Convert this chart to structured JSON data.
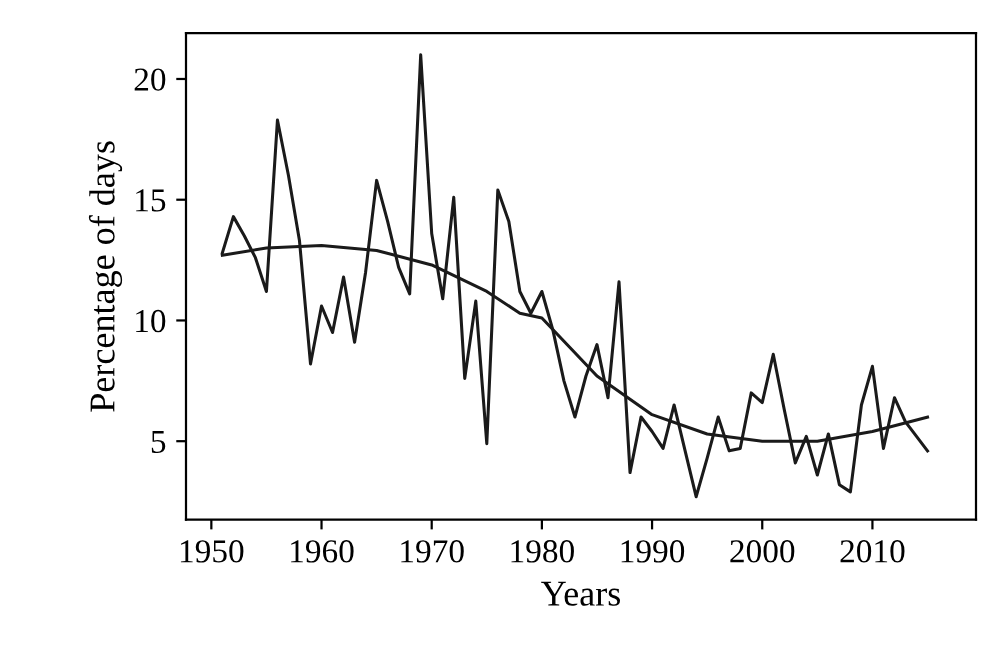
{
  "chart_data": {
    "type": "line",
    "xlabel": "Years",
    "ylabel": "Percentage of days",
    "xlim": [
      1947.7,
      2019.4
    ],
    "ylim": [
      1.75,
      21.9
    ],
    "xticks": [
      1950,
      1960,
      1970,
      1980,
      1990,
      2000,
      2010
    ],
    "yticks": [
      5,
      10,
      15,
      20
    ],
    "grid": false,
    "legend": false,
    "series": [
      {
        "color": "#1a1a1a",
        "x": [
          1951,
          1952,
          1953,
          1954,
          1955,
          1956,
          1957,
          1958,
          1959,
          1960,
          1961,
          1962,
          1963,
          1964,
          1965,
          1966,
          1967,
          1968,
          1969,
          1970,
          1971,
          1972,
          1973,
          1974,
          1975,
          1976,
          1977,
          1978,
          1979,
          1980,
          1981,
          1982,
          1983,
          1984,
          1985,
          1986,
          1987,
          1988,
          1989,
          1990,
          1991,
          1992,
          1993,
          1994,
          1995,
          1996,
          1997,
          1998,
          1999,
          2000,
          2001,
          2002,
          2003,
          2004,
          2005,
          2006,
          2007,
          2008,
          2009,
          2010,
          2011,
          2012,
          2013,
          2014,
          2015
        ],
        "values": [
          12.8,
          14.3,
          13.5,
          12.6,
          11.2,
          18.3,
          16.0,
          13.3,
          8.2,
          10.6,
          9.5,
          11.8,
          9.1,
          12.0,
          15.8,
          14.1,
          12.2,
          11.1,
          21.0,
          13.6,
          10.9,
          15.1,
          7.6,
          10.8,
          4.9,
          15.4,
          14.1,
          11.2,
          10.3,
          11.2,
          9.6,
          7.5,
          6.0,
          7.7,
          9.0,
          6.8,
          11.6,
          3.7,
          6.0,
          5.4,
          4.7,
          6.5,
          4.6,
          2.7,
          4.3,
          6.0,
          4.6,
          4.7,
          7.0,
          6.6,
          8.6,
          6.3,
          4.1,
          5.2,
          3.6,
          5.3,
          3.2,
          2.9,
          6.5,
          8.1,
          4.7,
          6.8,
          5.8,
          5.2,
          4.6
        ]
      },
      {
        "color": "#1a1a1a",
        "x": [
          1951,
          1955,
          1960,
          1965,
          1970,
          1975,
          1978,
          1980,
          1985,
          1990,
          1995,
          2000,
          2005,
          2010,
          2015
        ],
        "values": [
          12.7,
          13.0,
          13.1,
          12.9,
          12.3,
          11.2,
          10.3,
          10.1,
          7.7,
          6.1,
          5.3,
          5.0,
          5.0,
          5.4,
          6.0
        ]
      }
    ]
  }
}
